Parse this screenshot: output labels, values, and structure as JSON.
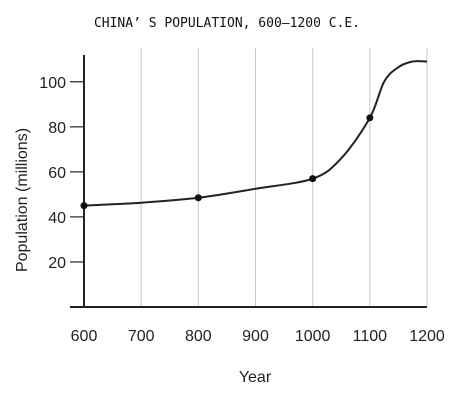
{
  "chart_data": {
    "type": "line",
    "title": "CHINA’ S POPULATION, 600–1200 C.E.",
    "xlabel": "Year",
    "ylabel": "Population (millions)",
    "xlim": [
      600,
      1200
    ],
    "ylim": [
      0,
      115
    ],
    "x_ticks": [
      600,
      700,
      800,
      900,
      1000,
      1100,
      1200
    ],
    "y_ticks": [
      20,
      40,
      60,
      80,
      100
    ],
    "grid": "vertical",
    "legend": "none",
    "series": [
      {
        "points": [
          {
            "x": 600,
            "y": 45
          },
          {
            "x": 800,
            "y": 48.5
          },
          {
            "x": 1000,
            "y": 57
          },
          {
            "x": 1100,
            "y": 84
          }
        ]
      }
    ],
    "curve": [
      {
        "x": 600,
        "y": 45
      },
      {
        "x": 700,
        "y": 46.3
      },
      {
        "x": 800,
        "y": 48.5
      },
      {
        "x": 900,
        "y": 52.5
      },
      {
        "x": 1000,
        "y": 57
      },
      {
        "x": 1050,
        "y": 66
      },
      {
        "x": 1100,
        "y": 84
      },
      {
        "x": 1125,
        "y": 100
      },
      {
        "x": 1150,
        "y": 106.5
      },
      {
        "x": 1175,
        "y": 109
      },
      {
        "x": 1200,
        "y": 109
      }
    ]
  }
}
